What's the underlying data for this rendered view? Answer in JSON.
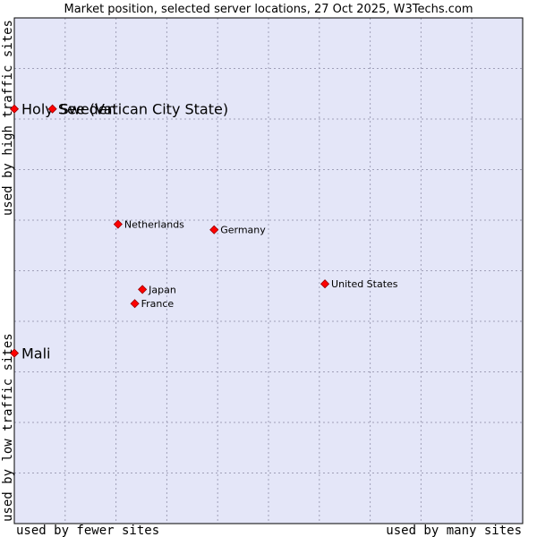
{
  "chart_data": {
    "type": "scatter",
    "title": "Market position, selected server locations, 27 Oct 2025, W3Techs.com",
    "xlabel_left": "used by fewer sites",
    "xlabel_right": "used by many sites",
    "ylabel_top": "used by high traffic sites",
    "ylabel_bottom": "used by low traffic sites",
    "xlim": [
      0,
      100
    ],
    "ylim": [
      0,
      100
    ],
    "grid": true,
    "points": [
      {
        "label": "Holy See (Vatican City State)",
        "x": 0.0,
        "y": 82.0,
        "emphasis": true
      },
      {
        "label": "Sweden",
        "x": 7.5,
        "y": 82.0,
        "emphasis": true
      },
      {
        "label": "Mali",
        "x": 0.0,
        "y": 33.7,
        "emphasis": true
      },
      {
        "label": "Netherlands",
        "x": 20.4,
        "y": 59.2,
        "emphasis": false
      },
      {
        "label": "Germany",
        "x": 39.3,
        "y": 58.1,
        "emphasis": false
      },
      {
        "label": "United States",
        "x": 61.1,
        "y": 47.4,
        "emphasis": false
      },
      {
        "label": "Japan",
        "x": 25.2,
        "y": 46.3,
        "emphasis": false
      },
      {
        "label": "France",
        "x": 23.7,
        "y": 43.5,
        "emphasis": false
      }
    ]
  },
  "colors": {
    "plot_bg": "#e4e6f8",
    "grid": "#a0a0b8",
    "marker": "#ff0000",
    "marker_edge": "#990000",
    "frame": "#000000"
  }
}
